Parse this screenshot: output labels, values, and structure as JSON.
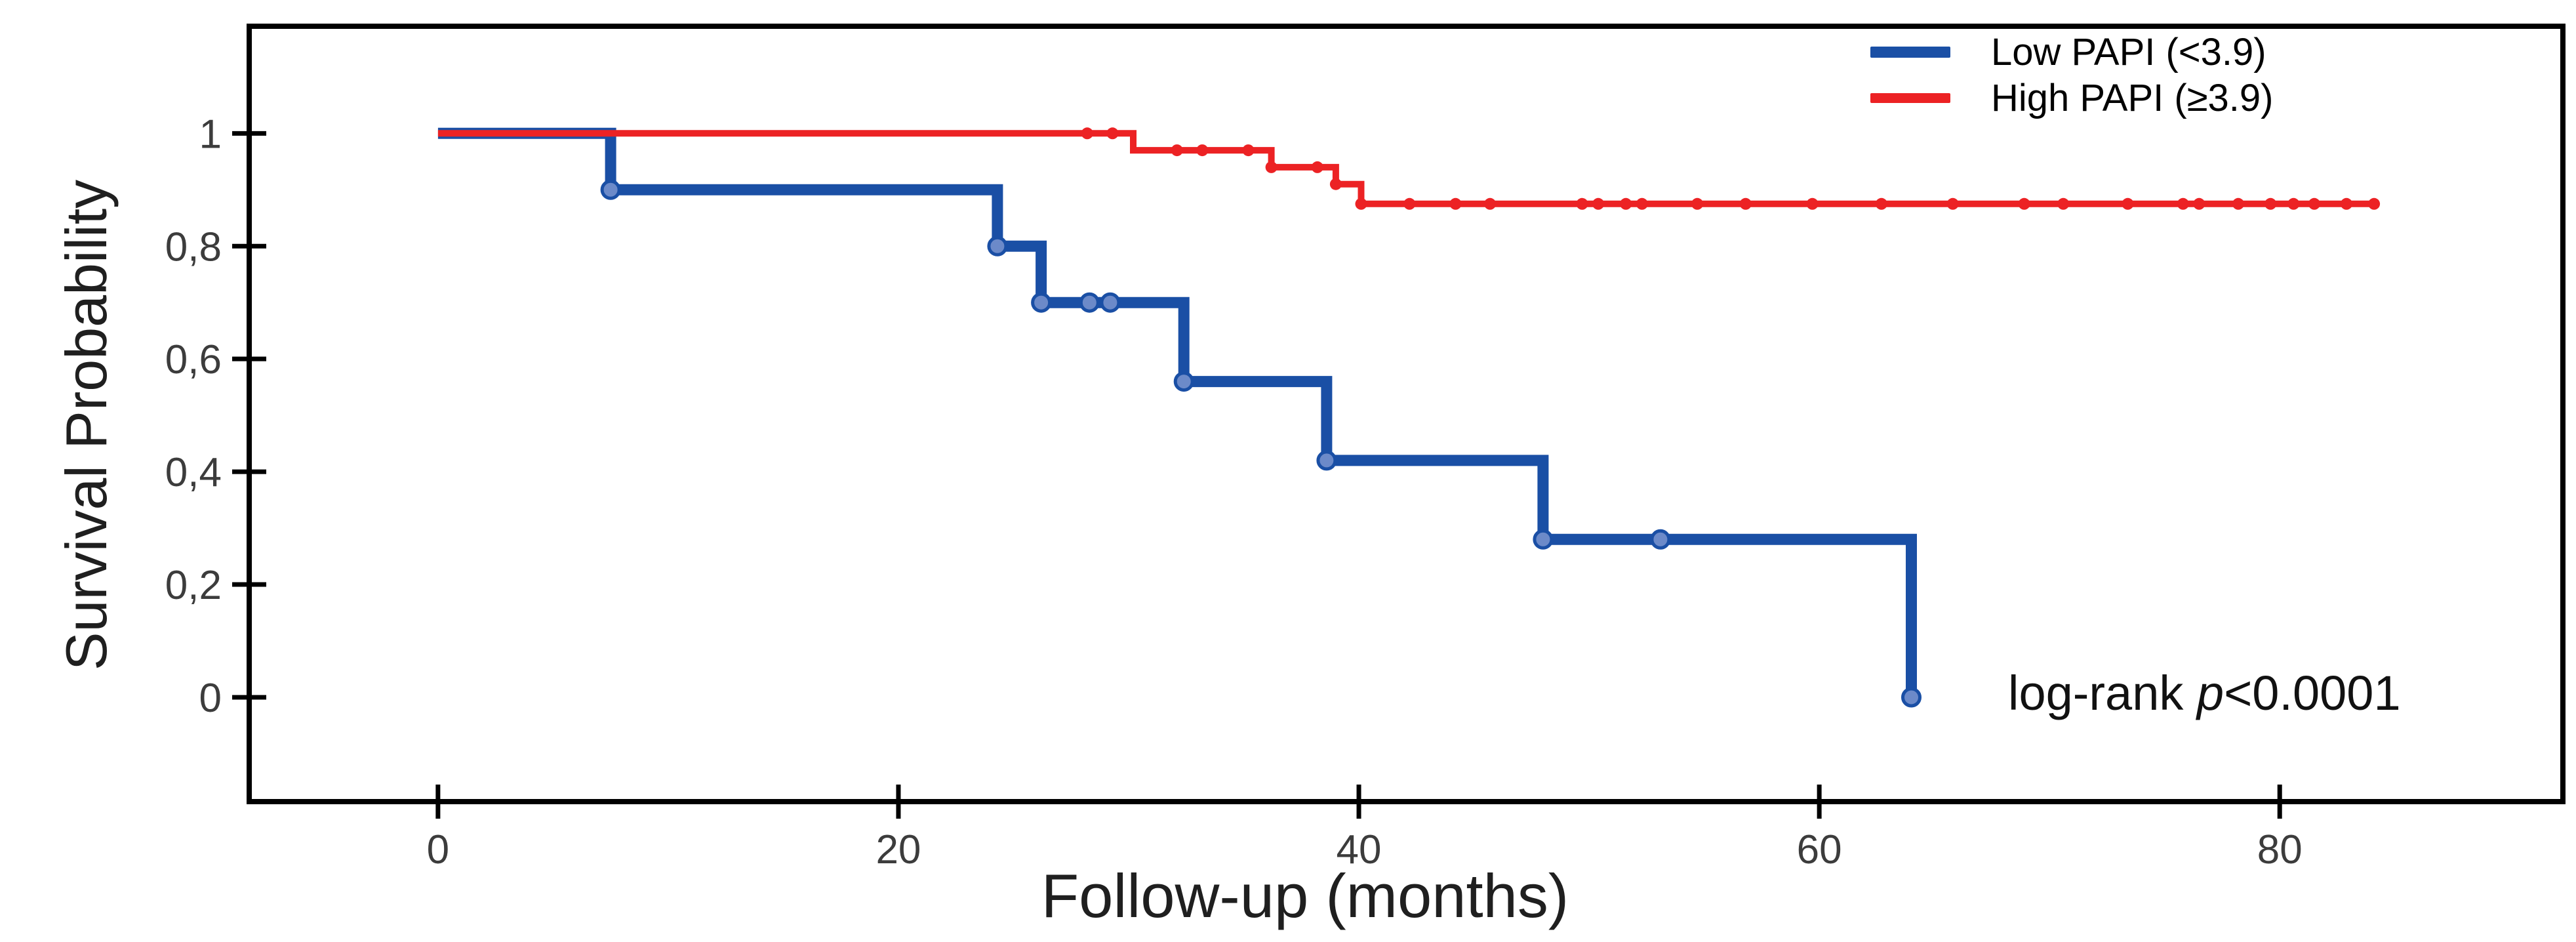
{
  "figure": {
    "background": "#ffffff",
    "border_color": "#000000"
  },
  "chart_data": {
    "type": "line",
    "subtype": "kaplan-meier-step",
    "title": "",
    "xlabel": "Follow-up (months)",
    "ylabel": "Survival Probability",
    "x_ticks": [
      0,
      20,
      40,
      60,
      80
    ],
    "y_ticks": [
      {
        "v": 1.0,
        "label": "1"
      },
      {
        "v": 0.8,
        "label": "0,8"
      },
      {
        "v": 0.6,
        "label": "0,6"
      },
      {
        "v": 0.4,
        "label": "0,4"
      },
      {
        "v": 0.2,
        "label": "0,2"
      },
      {
        "v": 0.0,
        "label": "0"
      }
    ],
    "xlim": [
      -8.2,
      92.3
    ],
    "ylim": [
      -0.185,
      1.19
    ],
    "grid": false,
    "legend_position": "top-right-inside",
    "annotation": {
      "prefix": "log-rank ",
      "italic": "p",
      "suffix": "<0.0001"
    },
    "series": [
      {
        "name": "Low PAPI (<3.9)",
        "color": "#1a4fa5",
        "marker_color": "#6c8ac9",
        "marker_stroke": 5,
        "marker_radius": 13,
        "line_width": 17,
        "steps": [
          [
            0,
            1
          ],
          [
            7.5,
            1
          ],
          [
            7.5,
            0.9
          ],
          [
            24.3,
            0.9
          ],
          [
            24.3,
            0.8
          ],
          [
            26.2,
            0.8
          ],
          [
            26.2,
            0.7
          ],
          [
            32.4,
            0.7
          ],
          [
            32.4,
            0.56
          ],
          [
            38.6,
            0.56
          ],
          [
            38.6,
            0.42
          ],
          [
            48,
            0.42
          ],
          [
            48,
            0.28
          ],
          [
            64,
            0.28
          ],
          [
            64,
            0
          ]
        ],
        "markers": [
          [
            7.5,
            0.9
          ],
          [
            24.3,
            0.8
          ],
          [
            26.2,
            0.7
          ],
          [
            28.3,
            0.7
          ],
          [
            29.2,
            0.7
          ],
          [
            32.4,
            0.56
          ],
          [
            38.6,
            0.42
          ],
          [
            48,
            0.28
          ],
          [
            53.1,
            0.28
          ],
          [
            64,
            0
          ]
        ]
      },
      {
        "name": "High PAPI (≥3.9)",
        "color": "#ec2224",
        "marker_color": "#ec2224",
        "marker_stroke": 0,
        "marker_radius": 9,
        "line_width": 10,
        "steps": [
          [
            0,
            1
          ],
          [
            30.2,
            1
          ],
          [
            30.2,
            0.97
          ],
          [
            36.2,
            0.97
          ],
          [
            36.2,
            0.94
          ],
          [
            39,
            0.94
          ],
          [
            39,
            0.91
          ],
          [
            40.1,
            0.91
          ],
          [
            40.1,
            0.875
          ],
          [
            84.3,
            0.875
          ]
        ],
        "markers": [
          [
            28.2,
            1
          ],
          [
            29.3,
            1
          ],
          [
            32.1,
            0.97
          ],
          [
            33.2,
            0.97
          ],
          [
            35.2,
            0.97
          ],
          [
            36.2,
            0.94
          ],
          [
            38.2,
            0.94
          ],
          [
            39,
            0.91
          ],
          [
            40.1,
            0.875
          ],
          [
            42.2,
            0.875
          ],
          [
            44.2,
            0.875
          ],
          [
            45.7,
            0.875
          ],
          [
            49.7,
            0.875
          ],
          [
            50.4,
            0.875
          ],
          [
            51.6,
            0.875
          ],
          [
            52.3,
            0.875
          ],
          [
            54.7,
            0.875
          ],
          [
            56.8,
            0.875
          ],
          [
            59.7,
            0.875
          ],
          [
            62.7,
            0.875
          ],
          [
            65.8,
            0.875
          ],
          [
            68.9,
            0.875
          ],
          [
            70.6,
            0.875
          ],
          [
            73.4,
            0.875
          ],
          [
            75.8,
            0.875
          ],
          [
            76.5,
            0.875
          ],
          [
            78.2,
            0.875
          ],
          [
            79.6,
            0.875
          ],
          [
            80.6,
            0.875
          ],
          [
            81.5,
            0.875
          ],
          [
            82.9,
            0.875
          ],
          [
            84.1,
            0.875
          ]
        ]
      }
    ]
  },
  "legend": {
    "items": [
      {
        "label": "Low PAPI (<3.9)",
        "color": "#1a4fa5",
        "swatch_height": 17
      },
      {
        "label": "High PAPI (≥3.9)",
        "color": "#ec2224",
        "swatch_height": 15
      }
    ]
  }
}
